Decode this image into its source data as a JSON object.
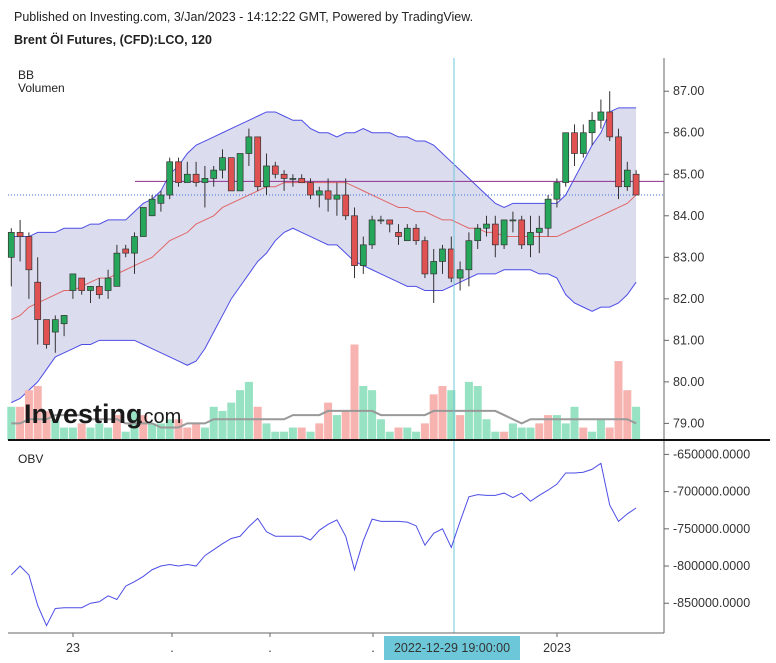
{
  "header": {
    "published": "Published on Investing.com, 3/Jan/2023 - 14:12:22 GMT, Powered by TradingView.",
    "symbol": "Brent Öl Futures, (CFD):LCO, 120"
  },
  "indicators": {
    "bb": "BB",
    "volume": "Volumen",
    "obv": "OBV"
  },
  "watermark": {
    "brand": "Investing",
    "suffix": ".com"
  },
  "crosshair_label": "2022-12-29 19:00:00",
  "colors": {
    "up": "#26a65b",
    "down": "#e05252",
    "up_vol": "#96e2c2",
    "down_vol": "#f7b3b0",
    "bb_fill": "#dcdcef",
    "bb_line": "#4d4de6",
    "basis": "#e06666",
    "obv": "#4d4de6",
    "crosshair": "#6cc8d8",
    "hline": "#8e2f8e"
  },
  "chart_data": [
    {
      "type": "candlestick",
      "title": "Brent Öl Futures, (CFD):LCO, 120",
      "ylim": [
        78.6,
        87.8
      ],
      "y_ticks": [
        "87.00",
        "86.00",
        "85.00",
        "84.00",
        "83.00",
        "82.00",
        "81.00",
        "80.00",
        "79.00"
      ],
      "x_ticks": [
        "23",
        ".",
        ".",
        ".",
        "2023"
      ],
      "horizontal_line": 84.83,
      "last_price_line": 84.5,
      "candles": [
        [
          83.0,
          83.7,
          82.3,
          83.6
        ],
        [
          83.6,
          83.9,
          82.9,
          83.5
        ],
        [
          83.5,
          83.6,
          82.0,
          82.7
        ],
        [
          82.4,
          83.0,
          80.9,
          81.5
        ],
        [
          81.5,
          81.5,
          80.8,
          80.9
        ],
        [
          81.2,
          81.6,
          80.7,
          81.5
        ],
        [
          81.4,
          81.6,
          81.1,
          81.6
        ],
        [
          82.2,
          82.6,
          82.0,
          82.6
        ],
        [
          82.5,
          82.5,
          82.1,
          82.2
        ],
        [
          82.2,
          82.3,
          81.9,
          82.3
        ],
        [
          82.3,
          82.5,
          82.0,
          82.1
        ],
        [
          82.2,
          82.7,
          82.0,
          82.5
        ],
        [
          82.3,
          83.3,
          82.3,
          83.1
        ],
        [
          83.2,
          83.3,
          83.0,
          83.1
        ],
        [
          83.1,
          83.6,
          82.6,
          83.5
        ],
        [
          83.5,
          84.2,
          83.5,
          84.2
        ],
        [
          84.0,
          84.5,
          84.0,
          84.4
        ],
        [
          84.3,
          84.6,
          84.1,
          84.5
        ],
        [
          84.5,
          85.4,
          84.4,
          85.3
        ],
        [
          85.3,
          85.4,
          84.7,
          84.8
        ],
        [
          84.8,
          85.3,
          84.8,
          85.0
        ],
        [
          85.0,
          85.3,
          84.7,
          84.8
        ],
        [
          84.8,
          85.2,
          84.2,
          84.9
        ],
        [
          84.9,
          85.2,
          84.7,
          85.1
        ],
        [
          85.1,
          85.6,
          84.9,
          85.4
        ],
        [
          85.4,
          85.4,
          84.6,
          84.6
        ],
        [
          84.6,
          85.5,
          84.6,
          85.5
        ],
        [
          85.5,
          86.1,
          85.2,
          85.9
        ],
        [
          85.9,
          85.9,
          84.6,
          84.7
        ],
        [
          84.7,
          85.5,
          84.5,
          85.2
        ],
        [
          85.2,
          85.3,
          84.9,
          85.0
        ],
        [
          85.0,
          85.1,
          84.6,
          84.9
        ],
        [
          84.9,
          85.0,
          84.7,
          84.9
        ],
        [
          84.9,
          85.0,
          84.8,
          84.8
        ],
        [
          84.8,
          84.9,
          84.4,
          84.5
        ],
        [
          84.5,
          84.7,
          84.2,
          84.6
        ],
        [
          84.6,
          84.9,
          84.1,
          84.4
        ],
        [
          84.4,
          84.8,
          84.0,
          84.5
        ],
        [
          84.5,
          84.9,
          83.9,
          84.0
        ],
        [
          84.0,
          84.2,
          82.5,
          82.8
        ],
        [
          82.8,
          83.5,
          82.6,
          83.3
        ],
        [
          83.3,
          84.0,
          83.2,
          83.9
        ],
        [
          83.9,
          84.0,
          83.8,
          83.9
        ],
        [
          83.9,
          83.9,
          83.6,
          83.8
        ],
        [
          83.6,
          83.8,
          83.3,
          83.5
        ],
        [
          83.4,
          83.8,
          83.4,
          83.7
        ],
        [
          83.7,
          83.8,
          83.3,
          83.4
        ],
        [
          83.4,
          83.5,
          82.5,
          82.6
        ],
        [
          82.6,
          83.2,
          81.9,
          82.9
        ],
        [
          82.9,
          83.3,
          82.6,
          83.2
        ],
        [
          83.2,
          83.5,
          82.4,
          82.5
        ],
        [
          82.5,
          82.9,
          82.2,
          82.7
        ],
        [
          82.7,
          83.6,
          82.3,
          83.4
        ],
        [
          83.4,
          83.8,
          83.2,
          83.7
        ],
        [
          83.7,
          84.0,
          83.5,
          83.8
        ],
        [
          83.8,
          84.0,
          83.0,
          83.3
        ],
        [
          83.3,
          83.9,
          83.2,
          83.9
        ],
        [
          83.9,
          84.1,
          83.6,
          83.9
        ],
        [
          83.9,
          84.0,
          83.2,
          83.3
        ],
        [
          83.3,
          84.0,
          83.0,
          83.6
        ],
        [
          83.6,
          84.0,
          83.1,
          83.7
        ],
        [
          83.7,
          84.5,
          83.5,
          84.4
        ],
        [
          84.4,
          84.9,
          84.2,
          84.8
        ],
        [
          84.8,
          86.0,
          84.7,
          86.0
        ],
        [
          86.0,
          86.2,
          85.2,
          85.5
        ],
        [
          85.5,
          86.2,
          85.4,
          86.0
        ],
        [
          86.0,
          86.5,
          85.7,
          86.3
        ],
        [
          86.3,
          86.8,
          86.1,
          86.5
        ],
        [
          86.5,
          87.0,
          85.8,
          85.9
        ],
        [
          85.9,
          86.1,
          84.4,
          84.7
        ],
        [
          84.7,
          85.3,
          84.6,
          85.1
        ],
        [
          85.0,
          85.1,
          84.5,
          84.5
        ]
      ],
      "volume": [
        [
          79.4,
          "u"
        ],
        [
          79.4,
          "d"
        ],
        [
          79.8,
          "d"
        ],
        [
          79.9,
          "d"
        ],
        [
          79.3,
          "d"
        ],
        [
          79.1,
          "u"
        ],
        [
          78.9,
          "u"
        ],
        [
          78.9,
          "u"
        ],
        [
          79.0,
          "d"
        ],
        [
          78.9,
          "u"
        ],
        [
          79.0,
          "u"
        ],
        [
          78.9,
          "u"
        ],
        [
          79.2,
          "d"
        ],
        [
          78.8,
          "u"
        ],
        [
          79.3,
          "u"
        ],
        [
          79.2,
          "d"
        ],
        [
          79.0,
          "u"
        ],
        [
          79.0,
          "u"
        ],
        [
          79.1,
          "u"
        ],
        [
          79.1,
          "d"
        ],
        [
          78.9,
          "d"
        ],
        [
          79.0,
          "d"
        ],
        [
          78.9,
          "u"
        ],
        [
          79.4,
          "u"
        ],
        [
          79.3,
          "u"
        ],
        [
          79.5,
          "u"
        ],
        [
          79.8,
          "u"
        ],
        [
          80.0,
          "u"
        ],
        [
          79.4,
          "d"
        ],
        [
          79.0,
          "u"
        ],
        [
          78.8,
          "u"
        ],
        [
          78.8,
          "u"
        ],
        [
          78.9,
          "u"
        ],
        [
          78.9,
          "d"
        ],
        [
          78.8,
          "u"
        ],
        [
          79.0,
          "d"
        ],
        [
          79.5,
          "d"
        ],
        [
          79.2,
          "u"
        ],
        [
          79.3,
          "d"
        ],
        [
          80.9,
          "d"
        ],
        [
          79.9,
          "u"
        ],
        [
          79.8,
          "u"
        ],
        [
          79.1,
          "u"
        ],
        [
          78.8,
          "u"
        ],
        [
          78.9,
          "d"
        ],
        [
          78.9,
          "u"
        ],
        [
          78.8,
          "u"
        ],
        [
          79.0,
          "d"
        ],
        [
          79.7,
          "d"
        ],
        [
          79.9,
          "d"
        ],
        [
          79.8,
          "u"
        ],
        [
          79.2,
          "d"
        ],
        [
          80.0,
          "u"
        ],
        [
          79.9,
          "u"
        ],
        [
          79.1,
          "u"
        ],
        [
          78.8,
          "u"
        ],
        [
          78.8,
          "d"
        ],
        [
          79.0,
          "u"
        ],
        [
          78.9,
          "u"
        ],
        [
          78.9,
          "u"
        ],
        [
          79.0,
          "d"
        ],
        [
          79.2,
          "d"
        ],
        [
          79.2,
          "u"
        ],
        [
          79.0,
          "u"
        ],
        [
          79.4,
          "u"
        ],
        [
          78.9,
          "d"
        ],
        [
          78.8,
          "u"
        ],
        [
          79.1,
          "u"
        ],
        [
          78.9,
          "d"
        ],
        [
          80.5,
          "d"
        ],
        [
          79.8,
          "d"
        ],
        [
          79.4,
          "u"
        ]
      ],
      "series": [
        {
          "name": "BB upper",
          "values": [
            83.5,
            83.5,
            83.5,
            83.6,
            83.6,
            83.6,
            83.7,
            83.7,
            83.7,
            83.8,
            83.8,
            83.9,
            83.9,
            83.9,
            84.1,
            84.3,
            84.4,
            84.6,
            85.0,
            85.2,
            85.5,
            85.7,
            85.8,
            85.9,
            86.0,
            86.1,
            86.2,
            86.3,
            86.4,
            86.5,
            86.5,
            86.4,
            86.3,
            86.3,
            86.1,
            86.0,
            86.0,
            85.9,
            86.0,
            86.0,
            86.1,
            86.0,
            86.0,
            86.0,
            85.9,
            85.9,
            85.8,
            85.8,
            85.7,
            85.5,
            85.3,
            85.1,
            84.9,
            84.7,
            84.5,
            84.3,
            84.2,
            84.3,
            84.3,
            84.3,
            84.3,
            84.3,
            84.3,
            84.5,
            84.9,
            85.3,
            85.7,
            86.0,
            86.5,
            86.6,
            86.6,
            86.6
          ]
        },
        {
          "name": "BB basis",
          "values": [
            81.5,
            81.6,
            81.8,
            81.9,
            82.0,
            82.1,
            82.2,
            82.2,
            82.3,
            82.4,
            82.5,
            82.5,
            82.6,
            82.7,
            82.8,
            82.9,
            83.0,
            83.2,
            83.4,
            83.5,
            83.6,
            83.8,
            83.9,
            84.0,
            84.2,
            84.3,
            84.4,
            84.5,
            84.6,
            84.7,
            84.7,
            84.8,
            84.8,
            84.8,
            84.8,
            84.8,
            84.8,
            84.8,
            84.8,
            84.7,
            84.6,
            84.5,
            84.4,
            84.3,
            84.2,
            84.2,
            84.1,
            84.1,
            84.0,
            83.9,
            83.9,
            83.8,
            83.7,
            83.7,
            83.6,
            83.6,
            83.5,
            83.5,
            83.5,
            83.5,
            83.5,
            83.5,
            83.5,
            83.6,
            83.7,
            83.8,
            83.9,
            84.0,
            84.1,
            84.2,
            84.3,
            84.5
          ]
        },
        {
          "name": "BB lower",
          "values": [
            79.5,
            79.6,
            79.8,
            80.0,
            80.3,
            80.6,
            80.7,
            80.8,
            80.9,
            80.9,
            81.0,
            81.0,
            81.0,
            81.0,
            81.0,
            80.9,
            80.8,
            80.7,
            80.6,
            80.5,
            80.4,
            80.5,
            80.8,
            81.2,
            81.6,
            82.0,
            82.3,
            82.6,
            82.9,
            83.1,
            83.4,
            83.6,
            83.7,
            83.6,
            83.5,
            83.4,
            83.3,
            83.3,
            83.1,
            82.9,
            82.8,
            82.7,
            82.6,
            82.5,
            82.4,
            82.3,
            82.3,
            82.2,
            82.2,
            82.2,
            82.3,
            82.4,
            82.5,
            82.6,
            82.6,
            82.6,
            82.7,
            82.7,
            82.7,
            82.7,
            82.6,
            82.6,
            82.5,
            82.1,
            81.9,
            81.8,
            81.7,
            81.8,
            81.8,
            81.9,
            82.1,
            82.4
          ]
        },
        {
          "name": "Volume MA",
          "values": [
            79.0,
            79.0,
            79.1,
            79.1,
            79.1,
            79.2,
            79.2,
            79.2,
            79.2,
            79.1,
            79.1,
            79.1,
            79.1,
            79.0,
            79.0,
            79.0,
            79.0,
            78.9,
            78.9,
            78.9,
            79.0,
            79.0,
            79.0,
            79.1,
            79.1,
            79.1,
            79.1,
            79.1,
            79.1,
            79.1,
            79.1,
            79.1,
            79.2,
            79.2,
            79.2,
            79.2,
            79.3,
            79.3,
            79.3,
            79.3,
            79.3,
            79.3,
            79.2,
            79.2,
            79.2,
            79.2,
            79.2,
            79.2,
            79.3,
            79.3,
            79.3,
            79.3,
            79.3,
            79.3,
            79.3,
            79.3,
            79.2,
            79.1,
            79.0,
            79.1,
            79.1,
            79.1,
            79.1,
            79.1,
            79.1,
            79.1,
            79.1,
            79.1,
            79.1,
            79.1,
            79.1,
            79.0
          ]
        }
      ]
    },
    {
      "type": "line",
      "title": "OBV",
      "ylim": [
        -890000,
        -632000
      ],
      "y_ticks": [
        "-650000.0000",
        "-700000.0000",
        "-750000.0000",
        "-800000.0000",
        "-850000.0000"
      ],
      "series": [
        {
          "name": "OBV",
          "values": [
            -812000,
            -800000,
            -812000,
            -853000,
            -880000,
            -857000,
            -856000,
            -856000,
            -856000,
            -850000,
            -848000,
            -840000,
            -845000,
            -827000,
            -821000,
            -814000,
            -805000,
            -800000,
            -798000,
            -800000,
            -798000,
            -800000,
            -786000,
            -778000,
            -770000,
            -763000,
            -760000,
            -747000,
            -736000,
            -754000,
            -760000,
            -760000,
            -760000,
            -760000,
            -765000,
            -752000,
            -744000,
            -738000,
            -760000,
            -805000,
            -766000,
            -737000,
            -740000,
            -740000,
            -740000,
            -741000,
            -746000,
            -772000,
            -756000,
            -750000,
            -775000,
            -740000,
            -707000,
            -704000,
            -705000,
            -705000,
            -702000,
            -708000,
            -702000,
            -713000,
            -705000,
            -698000,
            -690000,
            -675000,
            -675000,
            -674000,
            -670000,
            -662000,
            -718000,
            -740000,
            -730000,
            -722000
          ]
        }
      ]
    }
  ]
}
